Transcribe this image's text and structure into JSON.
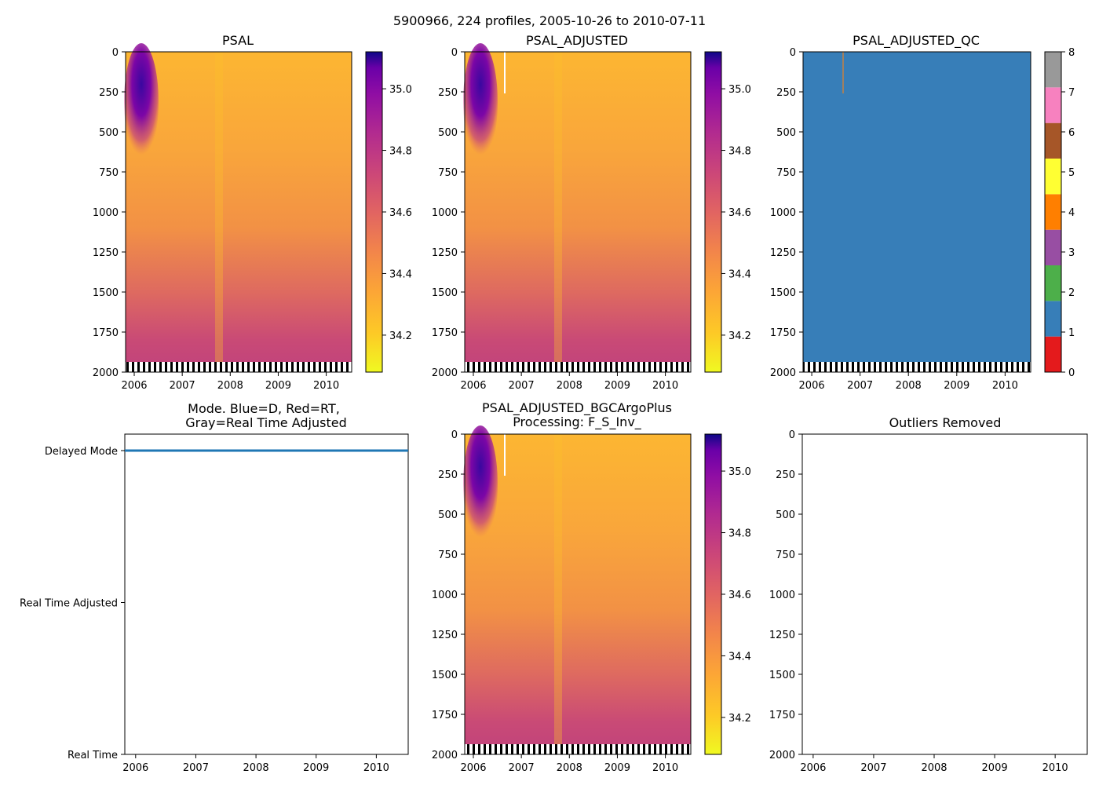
{
  "suptitle": "5900966, 224 profiles, 2005-10-26 to 2010-07-11",
  "chart_data": [
    {
      "id": "psal",
      "type": "heatmap",
      "title": "PSAL",
      "x_range": [
        2005.82,
        2010.53
      ],
      "x_ticks": [
        2006,
        2007,
        2008,
        2009,
        2010
      ],
      "x_tick_labels": [
        "2006",
        "2007",
        "2008",
        "2009",
        "2010"
      ],
      "y_range": [
        2000,
        0
      ],
      "y_ticks": [
        0,
        250,
        500,
        750,
        1000,
        1250,
        1500,
        1750,
        2000
      ],
      "y_tick_labels": [
        "0",
        "250",
        "500",
        "750",
        "1000",
        "1250",
        "1500",
        "1750",
        "2000"
      ],
      "colormap": "plasma_r",
      "color_range": [
        34.08,
        35.12
      ],
      "colorbar_ticks": [
        35.0,
        34.8,
        34.6,
        34.4,
        34.2
      ],
      "colorbar_tick_labels": [
        "35.0",
        "34.8",
        "34.6",
        "34.4",
        "34.2"
      ],
      "profile_max_depth": [
        1950,
        1950
      ]
    },
    {
      "id": "psal_adj",
      "type": "heatmap",
      "title": "PSAL_ADJUSTED",
      "x_range": [
        2005.82,
        2010.53
      ],
      "x_ticks": [
        2006,
        2007,
        2008,
        2009,
        2010
      ],
      "x_tick_labels": [
        "2006",
        "2007",
        "2008",
        "2009",
        "2010"
      ],
      "y_range": [
        2000,
        0
      ],
      "y_ticks": [
        0,
        250,
        500,
        750,
        1000,
        1250,
        1500,
        1750,
        2000
      ],
      "y_tick_labels": [
        "0",
        "250",
        "500",
        "750",
        "1000",
        "1250",
        "1500",
        "1750",
        "2000"
      ],
      "colormap": "plasma_r",
      "color_range": [
        34.08,
        35.12
      ],
      "colorbar_ticks": [
        35.0,
        34.8,
        34.6,
        34.4,
        34.2
      ],
      "colorbar_tick_labels": [
        "35.0",
        "34.8",
        "34.6",
        "34.4",
        "34.2"
      ]
    },
    {
      "id": "psal_adj_qc",
      "type": "heatmap",
      "title": "PSAL_ADJUSTED_QC",
      "x_range": [
        2005.82,
        2010.53
      ],
      "x_ticks": [
        2006,
        2007,
        2008,
        2009,
        2010
      ],
      "x_tick_labels": [
        "2006",
        "2007",
        "2008",
        "2009",
        "2010"
      ],
      "y_range": [
        2000,
        0
      ],
      "y_ticks": [
        0,
        250,
        500,
        750,
        1000,
        1250,
        1500,
        1750,
        2000
      ],
      "y_tick_labels": [
        "0",
        "250",
        "500",
        "750",
        "1000",
        "1250",
        "1500",
        "1750",
        "2000"
      ],
      "dominant_flag": 1,
      "colorbar_ticks": [
        0,
        1,
        2,
        3,
        4,
        5,
        6,
        7,
        8
      ],
      "colorbar_tick_labels": [
        "0",
        "1",
        "2",
        "3",
        "4",
        "5",
        "6",
        "7",
        "8"
      ],
      "flag_colors": [
        "#e41a1c",
        "#377eb8",
        "#4daf4a",
        "#984ea3",
        "#ff7f00",
        "#ffff33",
        "#a65628",
        "#f781bf",
        "#999999"
      ]
    },
    {
      "id": "mode",
      "type": "line",
      "title_lines": [
        "Mode. Blue=D, Red=RT,",
        "Gray=Real Time Adjusted"
      ],
      "x_range": [
        2005.82,
        2010.53
      ],
      "x_ticks": [
        2006,
        2007,
        2008,
        2009,
        2010
      ],
      "x_tick_labels": [
        "2006",
        "2007",
        "2008",
        "2009",
        "2010"
      ],
      "y_categories": [
        "Real Time",
        "Real Time Adjusted",
        "Delayed Mode"
      ],
      "y_values": [
        0,
        1,
        2
      ],
      "series": [
        {
          "name": "Delayed Mode",
          "color": "#1f77b4",
          "y": 2,
          "x_start": 2005.82,
          "x_end": 2010.53
        }
      ]
    },
    {
      "id": "bgc",
      "type": "heatmap",
      "title_lines": [
        "PSAL_ADJUSTED_BGCArgoPlus",
        "Processing: F_S_Inv_"
      ],
      "x_range": [
        2005.82,
        2010.53
      ],
      "x_ticks": [
        2006,
        2007,
        2008,
        2009,
        2010
      ],
      "x_tick_labels": [
        "2006",
        "2007",
        "2008",
        "2009",
        "2010"
      ],
      "y_range": [
        2000,
        0
      ],
      "y_ticks": [
        0,
        250,
        500,
        750,
        1000,
        1250,
        1500,
        1750,
        2000
      ],
      "y_tick_labels": [
        "0",
        "250",
        "500",
        "750",
        "1000",
        "1250",
        "1500",
        "1750",
        "2000"
      ],
      "colormap": "plasma_r",
      "color_range": [
        34.08,
        35.12
      ],
      "colorbar_ticks": [
        35.0,
        34.8,
        34.6,
        34.4,
        34.2
      ],
      "colorbar_tick_labels": [
        "35.0",
        "34.8",
        "34.6",
        "34.4",
        "34.2"
      ]
    },
    {
      "id": "outliers",
      "type": "scatter",
      "title": "Outliers Removed",
      "x_range": [
        2005.82,
        2010.53
      ],
      "x_ticks": [
        2006,
        2007,
        2008,
        2009,
        2010
      ],
      "x_tick_labels": [
        "2006",
        "2007",
        "2008",
        "2009",
        "2010"
      ],
      "y_range": [
        2000,
        0
      ],
      "y_ticks": [
        0,
        250,
        500,
        750,
        1000,
        1250,
        1500,
        1750,
        2000
      ],
      "y_tick_labels": [
        "0",
        "250",
        "500",
        "750",
        "1000",
        "1250",
        "1500",
        "1750",
        "2000"
      ],
      "points": []
    }
  ]
}
